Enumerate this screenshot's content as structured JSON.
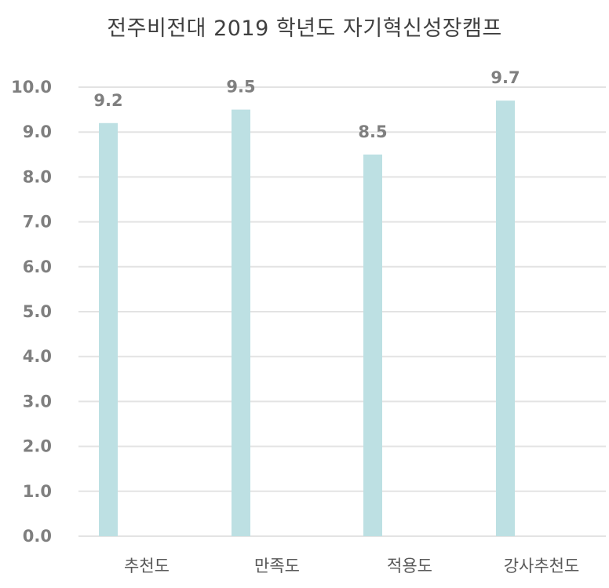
{
  "chart_data": {
    "type": "bar",
    "title": "전주비전대 2019 학년도 자기혁신성장캠프",
    "categories": [
      "추천도",
      "만족도",
      "적용도",
      "강사추천도"
    ],
    "values": [
      9.2,
      9.5,
      8.5,
      9.7
    ],
    "data_labels": [
      "9.2",
      "9.5",
      "8.5",
      "9.7"
    ],
    "yticks": [
      "0.0",
      "1.0",
      "2.0",
      "3.0",
      "4.0",
      "5.0",
      "6.0",
      "7.0",
      "8.0",
      "9.0",
      "10.0"
    ],
    "ylim": [
      0,
      10
    ],
    "xlabel": "",
    "ylabel": "",
    "grid": true,
    "legend": "none",
    "colors": {
      "bar": "#bde0e3",
      "grid": "#e3e3e3",
      "tick_text": "#7f7f7f",
      "title_text": "#404040"
    }
  }
}
